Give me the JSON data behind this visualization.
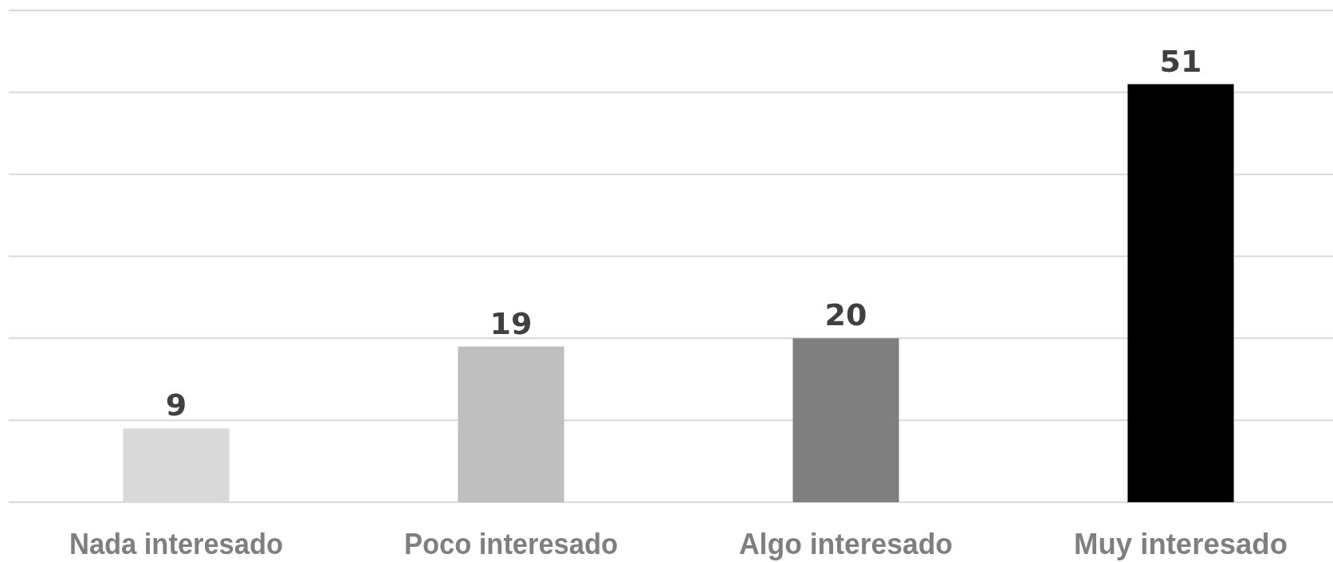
{
  "chart_data": {
    "type": "bar",
    "categories": [
      "Nada interesado",
      "Poco interesado",
      "Algo interesado",
      "Muy interesado"
    ],
    "values": [
      9,
      19,
      20,
      51
    ],
    "colors": [
      "#d9d9d9",
      "#bfbfbf",
      "#7f7f7f",
      "#000000"
    ],
    "ylim": [
      0,
      60
    ],
    "yticks": [
      {
        "value": 0,
        "label": null
      },
      {
        "value": 10,
        "label": null
      },
      {
        "value": 20,
        "label": null
      },
      {
        "value": 30,
        "label": null
      },
      {
        "value": 40,
        "label": null
      },
      {
        "value": 50,
        "label": null
      },
      {
        "value": 60,
        "label": null
      }
    ],
    "grid": true,
    "tick_labels": "x",
    "data_labels": true
  }
}
